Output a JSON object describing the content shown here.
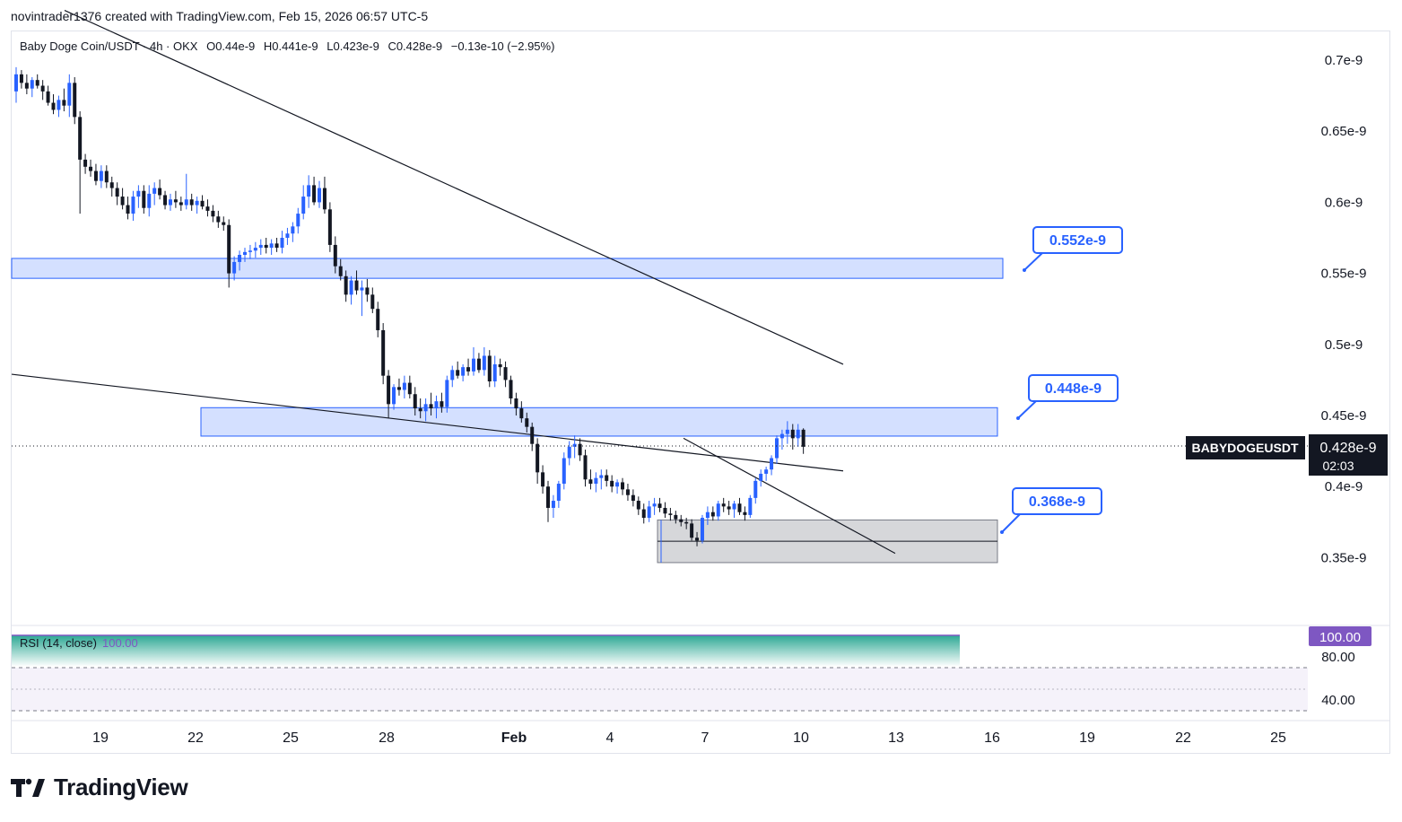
{
  "header": {
    "attribution": "novintrader1376 created with TradingView.com, Feb 15, 2026 06:57 UTC-5"
  },
  "legend": {
    "symbol": "Baby Doge Coin/USDT · 4h · OKX",
    "open": "O0.44e-9",
    "high": "H0.441e-9",
    "low": "L0.423e-9",
    "close": "C0.428e-9",
    "change": "−0.13e-10 (−2.95%)"
  },
  "price_axis": {
    "ticks": [
      "0.7e-9",
      "0.65e-9",
      "0.6e-9",
      "0.55e-9",
      "0.5e-9",
      "0.45e-9",
      "0.4e-9",
      "0.35e-9"
    ],
    "ticker_label": "BABYDOGEUSDT",
    "last_price": "0.428e-9",
    "countdown": "02:03"
  },
  "time_axis": {
    "ticks": [
      "19",
      "22",
      "25",
      "28",
      "Feb",
      "4",
      "7",
      "10",
      "13",
      "16",
      "19",
      "22",
      "25"
    ]
  },
  "callouts": [
    "0.552e-9",
    "0.448e-9",
    "0.368e-9"
  ],
  "rsi": {
    "label": "RSI (14, close)",
    "value": "100.00",
    "axis_value": "100.00",
    "ticks": [
      "80.00",
      "40.00"
    ]
  },
  "footer": {
    "brand": "TradingView"
  },
  "colors": {
    "up": "#2962ff",
    "down": "#131722",
    "zone_blue": "#2962ff",
    "zone_grey": "#787b86",
    "rsi": "#7e57c2",
    "rsi_fill": "#089981"
  },
  "chart_data": {
    "type": "candlestick",
    "interval": "4h",
    "x_start": "Jan 17",
    "y_range": [
      0.325,
      0.72
    ],
    "y_unit": "e-9",
    "candles": [
      [
        0.678,
        0.695,
        0.67,
        0.69
      ],
      [
        0.69,
        0.693,
        0.68,
        0.684
      ],
      [
        0.684,
        0.69,
        0.676,
        0.68
      ],
      [
        0.68,
        0.688,
        0.674,
        0.686
      ],
      [
        0.686,
        0.69,
        0.68,
        0.682
      ],
      [
        0.682,
        0.686,
        0.672,
        0.678
      ],
      [
        0.678,
        0.682,
        0.668,
        0.67
      ],
      [
        0.67,
        0.676,
        0.662,
        0.665
      ],
      [
        0.665,
        0.675,
        0.66,
        0.672
      ],
      [
        0.672,
        0.68,
        0.664,
        0.668
      ],
      [
        0.668,
        0.69,
        0.66,
        0.684
      ],
      [
        0.684,
        0.688,
        0.655,
        0.66
      ],
      [
        0.66,
        0.664,
        0.592,
        0.63
      ],
      [
        0.63,
        0.634,
        0.62,
        0.625
      ],
      [
        0.625,
        0.63,
        0.618,
        0.622
      ],
      [
        0.622,
        0.627,
        0.612,
        0.615
      ],
      [
        0.615,
        0.626,
        0.61,
        0.622
      ],
      [
        0.622,
        0.626,
        0.61,
        0.614
      ],
      [
        0.614,
        0.618,
        0.604,
        0.61
      ],
      [
        0.61,
        0.614,
        0.598,
        0.604
      ],
      [
        0.604,
        0.61,
        0.595,
        0.598
      ],
      [
        0.598,
        0.604,
        0.588,
        0.592
      ],
      [
        0.592,
        0.608,
        0.587,
        0.604
      ],
      [
        0.604,
        0.612,
        0.596,
        0.608
      ],
      [
        0.608,
        0.612,
        0.592,
        0.596
      ],
      [
        0.596,
        0.612,
        0.59,
        0.606
      ],
      [
        0.606,
        0.614,
        0.598,
        0.61
      ],
      [
        0.61,
        0.616,
        0.602,
        0.605
      ],
      [
        0.605,
        0.608,
        0.595,
        0.598
      ],
      [
        0.598,
        0.606,
        0.594,
        0.602
      ],
      [
        0.602,
        0.608,
        0.596,
        0.6
      ],
      [
        0.6,
        0.604,
        0.594,
        0.598
      ],
      [
        0.598,
        0.62,
        0.595,
        0.602
      ],
      [
        0.602,
        0.606,
        0.594,
        0.598
      ],
      [
        0.598,
        0.604,
        0.592,
        0.601
      ],
      [
        0.601,
        0.605,
        0.595,
        0.597
      ],
      [
        0.597,
        0.602,
        0.59,
        0.594
      ],
      [
        0.594,
        0.598,
        0.586,
        0.59
      ],
      [
        0.59,
        0.594,
        0.582,
        0.586
      ],
      [
        0.586,
        0.59,
        0.58,
        0.584
      ],
      [
        0.584,
        0.588,
        0.54,
        0.55
      ],
      [
        0.55,
        0.562,
        0.545,
        0.558
      ],
      [
        0.558,
        0.566,
        0.552,
        0.563
      ],
      [
        0.563,
        0.568,
        0.558,
        0.565
      ],
      [
        0.565,
        0.57,
        0.56,
        0.566
      ],
      [
        0.566,
        0.572,
        0.561,
        0.568
      ],
      [
        0.568,
        0.574,
        0.563,
        0.57
      ],
      [
        0.57,
        0.575,
        0.564,
        0.568
      ],
      [
        0.568,
        0.574,
        0.563,
        0.571
      ],
      [
        0.571,
        0.575,
        0.565,
        0.568
      ],
      [
        0.568,
        0.58,
        0.564,
        0.575
      ],
      [
        0.575,
        0.582,
        0.57,
        0.578
      ],
      [
        0.578,
        0.586,
        0.572,
        0.583
      ],
      [
        0.583,
        0.596,
        0.578,
        0.592
      ],
      [
        0.592,
        0.612,
        0.588,
        0.604
      ],
      [
        0.604,
        0.619,
        0.596,
        0.612
      ],
      [
        0.612,
        0.618,
        0.598,
        0.6
      ],
      [
        0.6,
        0.615,
        0.596,
        0.61
      ],
      [
        0.61,
        0.618,
        0.592,
        0.595
      ],
      [
        0.595,
        0.6,
        0.565,
        0.57
      ],
      [
        0.57,
        0.576,
        0.55,
        0.555
      ],
      [
        0.555,
        0.56,
        0.545,
        0.548
      ],
      [
        0.548,
        0.552,
        0.53,
        0.535
      ],
      [
        0.535,
        0.548,
        0.528,
        0.545
      ],
      [
        0.545,
        0.552,
        0.535,
        0.538
      ],
      [
        0.538,
        0.545,
        0.52,
        0.54
      ],
      [
        0.54,
        0.546,
        0.53,
        0.535
      ],
      [
        0.535,
        0.54,
        0.522,
        0.525
      ],
      [
        0.525,
        0.53,
        0.505,
        0.51
      ],
      [
        0.51,
        0.515,
        0.472,
        0.478
      ],
      [
        0.478,
        0.482,
        0.448,
        0.458
      ],
      [
        0.458,
        0.472,
        0.454,
        0.47
      ],
      [
        0.47,
        0.476,
        0.464,
        0.468
      ],
      [
        0.468,
        0.478,
        0.462,
        0.473
      ],
      [
        0.473,
        0.478,
        0.462,
        0.465
      ],
      [
        0.465,
        0.47,
        0.45,
        0.455
      ],
      [
        0.455,
        0.462,
        0.448,
        0.453
      ],
      [
        0.453,
        0.462,
        0.446,
        0.458
      ],
      [
        0.458,
        0.466,
        0.45,
        0.455
      ],
      [
        0.455,
        0.464,
        0.448,
        0.46
      ],
      [
        0.46,
        0.466,
        0.452,
        0.456
      ],
      [
        0.456,
        0.478,
        0.452,
        0.475
      ],
      [
        0.475,
        0.485,
        0.47,
        0.482
      ],
      [
        0.482,
        0.488,
        0.476,
        0.478
      ],
      [
        0.478,
        0.486,
        0.474,
        0.484
      ],
      [
        0.484,
        0.49,
        0.478,
        0.481
      ],
      [
        0.481,
        0.498,
        0.478,
        0.49
      ],
      [
        0.49,
        0.494,
        0.48,
        0.482
      ],
      [
        0.482,
        0.498,
        0.478,
        0.492
      ],
      [
        0.492,
        0.496,
        0.47,
        0.474
      ],
      [
        0.474,
        0.492,
        0.47,
        0.486
      ],
      [
        0.486,
        0.49,
        0.478,
        0.484
      ],
      [
        0.484,
        0.488,
        0.47,
        0.475
      ],
      [
        0.475,
        0.478,
        0.458,
        0.462
      ],
      [
        0.462,
        0.466,
        0.45,
        0.455
      ],
      [
        0.455,
        0.46,
        0.445,
        0.448
      ],
      [
        0.448,
        0.452,
        0.438,
        0.442
      ],
      [
        0.442,
        0.445,
        0.425,
        0.43
      ],
      [
        0.43,
        0.434,
        0.402,
        0.41
      ],
      [
        0.41,
        0.415,
        0.395,
        0.4
      ],
      [
        0.4,
        0.404,
        0.375,
        0.385
      ],
      [
        0.385,
        0.394,
        0.378,
        0.39
      ],
      [
        0.39,
        0.404,
        0.385,
        0.402
      ],
      [
        0.402,
        0.424,
        0.398,
        0.42
      ],
      [
        0.42,
        0.432,
        0.415,
        0.428
      ],
      [
        0.428,
        0.436,
        0.42,
        0.43
      ],
      [
        0.43,
        0.434,
        0.418,
        0.422
      ],
      [
        0.422,
        0.426,
        0.4,
        0.405
      ],
      [
        0.405,
        0.412,
        0.398,
        0.402
      ],
      [
        0.402,
        0.41,
        0.396,
        0.406
      ],
      [
        0.406,
        0.412,
        0.398,
        0.408
      ],
      [
        0.408,
        0.412,
        0.4,
        0.404
      ],
      [
        0.404,
        0.408,
        0.396,
        0.4
      ],
      [
        0.4,
        0.405,
        0.395,
        0.403
      ],
      [
        0.403,
        0.406,
        0.394,
        0.398
      ],
      [
        0.398,
        0.402,
        0.39,
        0.394
      ],
      [
        0.394,
        0.398,
        0.386,
        0.39
      ],
      [
        0.39,
        0.393,
        0.38,
        0.384
      ],
      [
        0.384,
        0.388,
        0.374,
        0.378
      ],
      [
        0.378,
        0.39,
        0.375,
        0.386
      ],
      [
        0.386,
        0.392,
        0.38,
        0.388
      ],
      [
        0.388,
        0.392,
        0.382,
        0.385
      ],
      [
        0.385,
        0.389,
        0.378,
        0.381
      ],
      [
        0.381,
        0.385,
        0.376,
        0.38
      ],
      [
        0.38,
        0.383,
        0.374,
        0.377
      ],
      [
        0.377,
        0.38,
        0.372,
        0.375
      ],
      [
        0.375,
        0.378,
        0.37,
        0.374
      ],
      [
        0.374,
        0.377,
        0.362,
        0.364
      ],
      [
        0.364,
        0.368,
        0.358,
        0.362
      ],
      [
        0.362,
        0.38,
        0.36,
        0.378
      ],
      [
        0.378,
        0.386,
        0.373,
        0.382
      ],
      [
        0.382,
        0.386,
        0.376,
        0.379
      ],
      [
        0.379,
        0.39,
        0.376,
        0.388
      ],
      [
        0.388,
        0.392,
        0.382,
        0.386
      ],
      [
        0.386,
        0.39,
        0.38,
        0.384
      ],
      [
        0.384,
        0.39,
        0.378,
        0.388
      ],
      [
        0.388,
        0.392,
        0.38,
        0.382
      ],
      [
        0.382,
        0.386,
        0.376,
        0.38
      ],
      [
        0.38,
        0.394,
        0.378,
        0.392
      ],
      [
        0.392,
        0.406,
        0.388,
        0.404
      ],
      [
        0.404,
        0.412,
        0.4,
        0.409
      ],
      [
        0.409,
        0.414,
        0.404,
        0.412
      ],
      [
        0.412,
        0.422,
        0.408,
        0.42
      ],
      [
        0.42,
        0.436,
        0.416,
        0.434
      ],
      [
        0.434,
        0.44,
        0.426,
        0.437
      ],
      [
        0.437,
        0.446,
        0.43,
        0.44
      ],
      [
        0.44,
        0.444,
        0.426,
        0.434
      ],
      [
        0.434,
        0.444,
        0.428,
        0.44
      ],
      [
        0.44,
        0.441,
        0.423,
        0.428
      ]
    ],
    "zones": [
      {
        "top": 0.5605,
        "bottom": 0.5465,
        "color": "blue",
        "label": "0.552e-9"
      },
      {
        "top": 0.4555,
        "bottom": 0.4355,
        "color": "blue",
        "label": "0.448e-9"
      },
      {
        "top": 0.3765,
        "bottom": 0.3465,
        "color": "grey",
        "label": "0.368e-9"
      }
    ],
    "trendlines": [
      {
        "from": [
          "Jan 17",
          0.735
        ],
        "to": [
          "Feb 6 late",
          0.486
        ]
      },
      {
        "from": [
          "Jan 17",
          0.479
        ],
        "to": [
          "Feb 6 late",
          0.411
        ]
      },
      {
        "from": [
          "Feb 6",
          0.434
        ],
        "to": [
          "Feb 11",
          0.353
        ]
      }
    ],
    "last_price": 0.428,
    "rsi": {
      "period": 14,
      "source": "close",
      "value": 100.0,
      "levels": [
        80,
        40
      ]
    }
  }
}
